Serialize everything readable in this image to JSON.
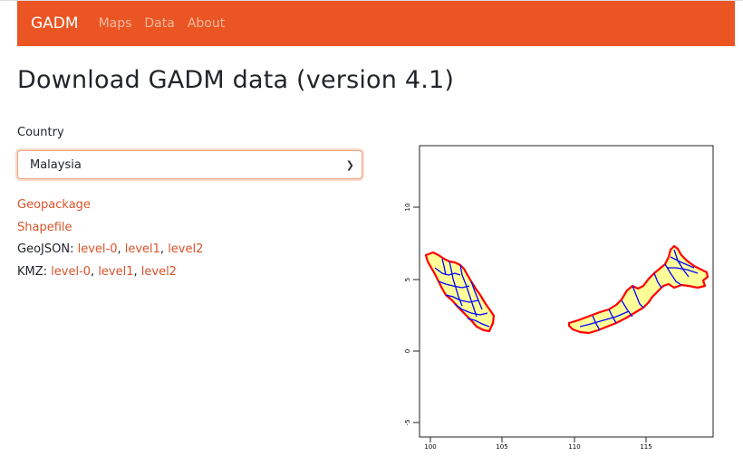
{
  "nav": {
    "brand": "GADM",
    "links": [
      "Maps",
      "Data",
      "About"
    ]
  },
  "page": {
    "title": "Download GADM data (version 4.1)"
  },
  "form": {
    "country_label": "Country",
    "country_value": "Malaysia"
  },
  "downloads": {
    "geopackage": "Geopackage",
    "shapefile": "Shapefile",
    "geojson_label": "GeoJSON:",
    "kmz_label": "KMZ:",
    "levels": [
      "level-0",
      "level1",
      "level2"
    ],
    "separator": ", "
  },
  "map": {
    "y_ticks": [
      "10",
      "5",
      "0",
      "-5"
    ],
    "x_ticks": [
      "100",
      "105",
      "110",
      "115"
    ],
    "colors": {
      "land": "#ffff99",
      "level1_border": "#0000ff",
      "country_border": "#ff0000"
    }
  }
}
